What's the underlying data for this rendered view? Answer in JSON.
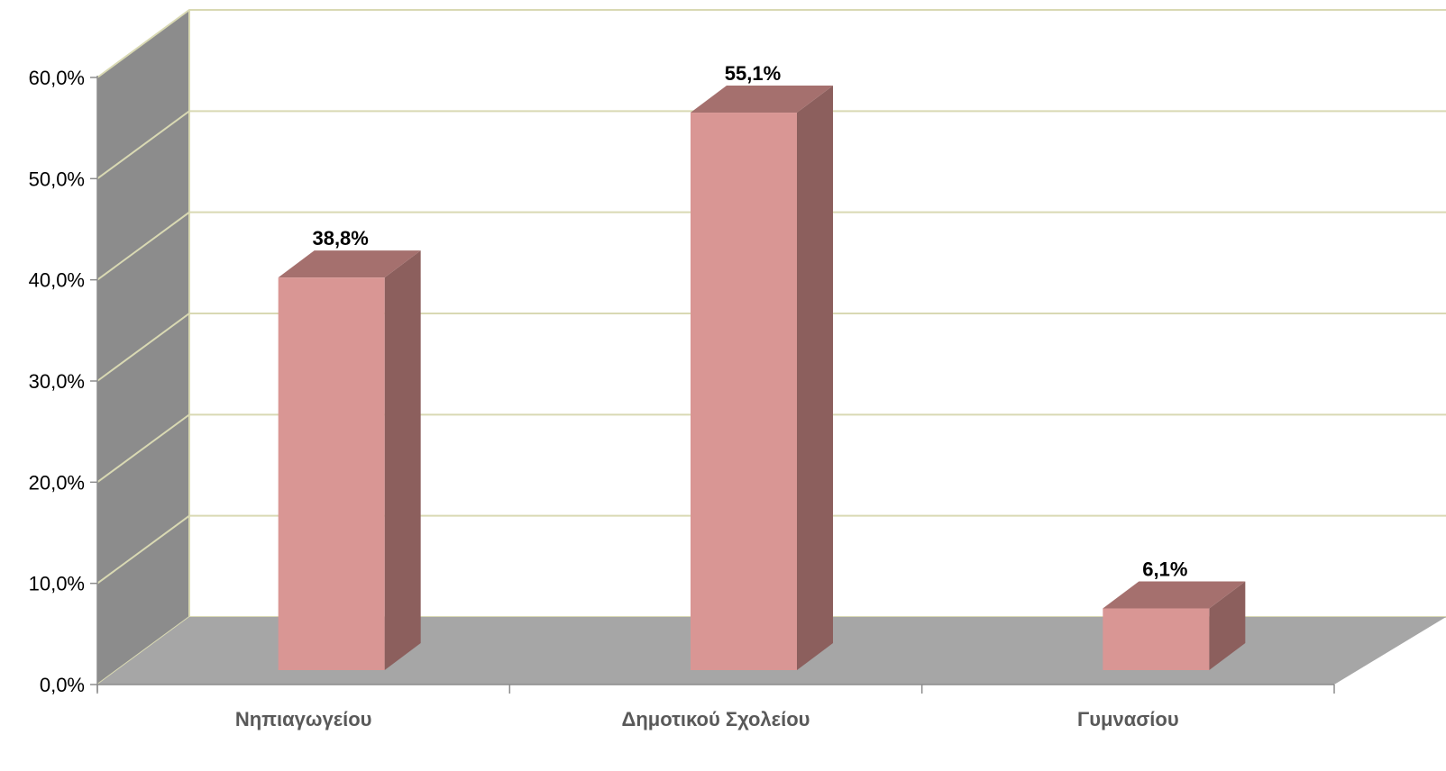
{
  "chart_data": {
    "type": "bar",
    "style": "3d-clustered-column",
    "title": "",
    "xlabel": "",
    "ylabel": "",
    "categories": [
      "Νηπιαγωγείου",
      "Δημοτικού Σχολείου",
      "Γυμνασίου"
    ],
    "values": [
      38.8,
      55.1,
      6.1
    ],
    "data_labels": [
      "38,8%",
      "55,1%",
      "6,1%"
    ],
    "ylim": [
      0,
      60
    ],
    "yticks": [
      0,
      10,
      20,
      30,
      40,
      50,
      60
    ],
    "ytick_labels": [
      "0,0%",
      "10,0%",
      "20,0%",
      "30,0%",
      "40,0%",
      "50,0%",
      "60,0%"
    ],
    "grid": true,
    "legend": "none",
    "colors": {
      "bar_front": "#d99694",
      "bar_side": "#8c5f5d",
      "bar_top": "#a5706e",
      "back_wall": "#ffffff",
      "side_wall": "#8c8c8c",
      "floor": "#a6a6a6",
      "gridline": "#d9d9b3"
    }
  }
}
